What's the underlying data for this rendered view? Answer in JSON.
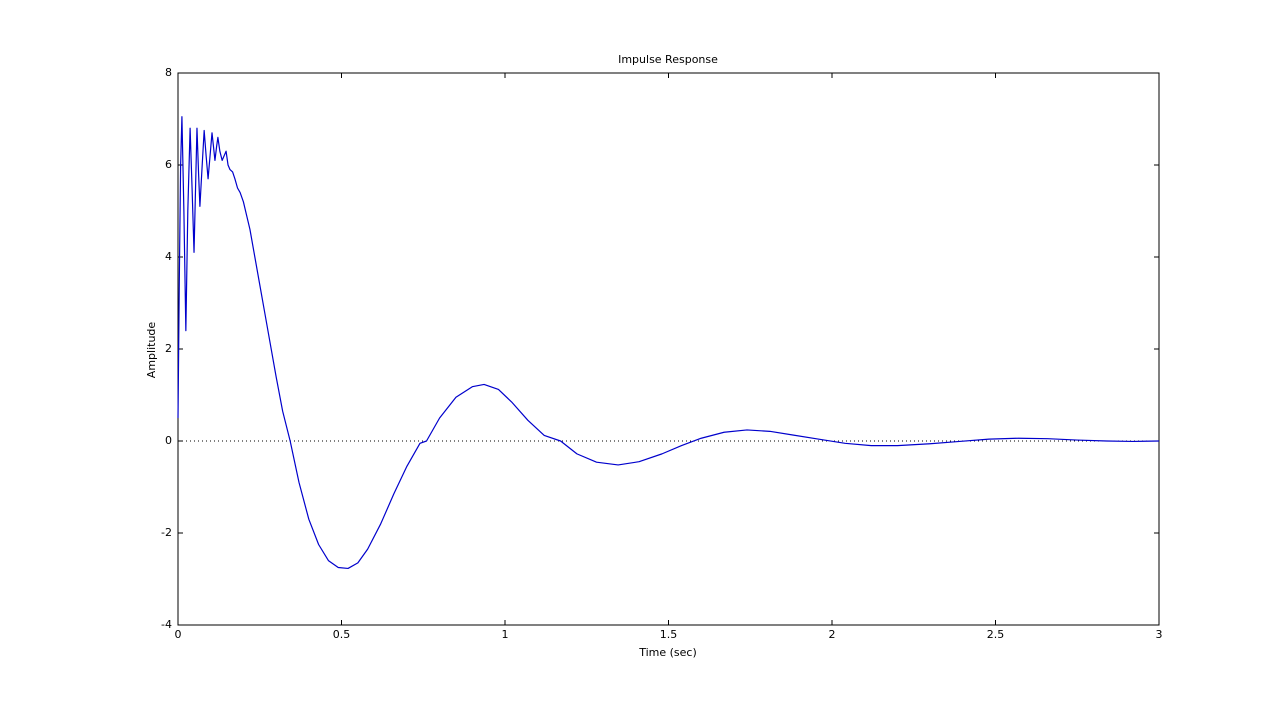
{
  "chart_data": {
    "type": "line",
    "title": "Impulse Response",
    "x_label": "Time (sec)",
    "y_label": "Amplitude",
    "x": [
      0,
      0.004,
      0.008,
      0.012,
      0.018,
      0.024,
      0.03,
      0.037,
      0.043,
      0.049,
      0.054,
      0.058,
      0.063,
      0.067,
      0.074,
      0.08,
      0.086,
      0.092,
      0.098,
      0.104,
      0.11,
      0.113,
      0.118,
      0.122,
      0.128,
      0.135,
      0.141,
      0.147,
      0.153,
      0.159,
      0.167,
      0.174,
      0.182,
      0.19,
      0.2,
      0.21,
      0.22,
      0.235,
      0.25,
      0.265,
      0.28,
      0.3,
      0.32,
      0.343,
      0.37,
      0.4,
      0.43,
      0.46,
      0.49,
      0.52,
      0.55,
      0.58,
      0.62,
      0.66,
      0.7,
      0.74,
      0.76,
      0.8,
      0.85,
      0.9,
      0.936,
      0.98,
      1.02,
      1.07,
      1.12,
      1.17,
      1.22,
      1.28,
      1.346,
      1.41,
      1.48,
      1.54,
      1.6,
      1.67,
      1.74,
      1.81,
      1.88,
      1.96,
      2.04,
      2.12,
      2.2,
      2.3,
      2.39,
      2.48,
      2.57,
      2.66,
      2.75,
      2.84,
      2.92,
      3
    ],
    "values": [
      0.5,
      3.5,
      6.0,
      7.05,
      5.0,
      2.4,
      5.0,
      6.8,
      5.5,
      4.1,
      5.6,
      6.8,
      5.8,
      5.1,
      6.0,
      6.75,
      6.2,
      5.7,
      6.2,
      6.7,
      6.3,
      6.1,
      6.4,
      6.6,
      6.3,
      6.1,
      6.2,
      6.3,
      6.0,
      5.9,
      5.85,
      5.7,
      5.5,
      5.4,
      5.2,
      4.9,
      4.6,
      4.0,
      3.4,
      2.8,
      2.2,
      1.4,
      0.65,
      0,
      -0.9,
      -1.7,
      -2.25,
      -2.6,
      -2.75,
      -2.77,
      -2.65,
      -2.35,
      -1.8,
      -1.15,
      -0.55,
      -0.05,
      0,
      0.5,
      0.95,
      1.18,
      1.23,
      1.12,
      0.85,
      0.45,
      0.12,
      0,
      -0.28,
      -0.46,
      -0.52,
      -0.45,
      -0.28,
      -0.1,
      0.06,
      0.19,
      0.24,
      0.21,
      0.13,
      0.04,
      -0.05,
      -0.1,
      -0.1,
      -0.06,
      -0.01,
      0.04,
      0.06,
      0.05,
      0.02,
      0,
      -0.01,
      0
    ],
    "color": "#0000cc",
    "xlim": [
      0,
      3
    ],
    "xticks": [
      0,
      0.5,
      1,
      1.5,
      2,
      2.5,
      3
    ],
    "ylim": [
      -4,
      8
    ],
    "yticks": [
      -4,
      -2,
      0,
      2,
      4,
      6,
      8
    ],
    "zero_line": true
  }
}
